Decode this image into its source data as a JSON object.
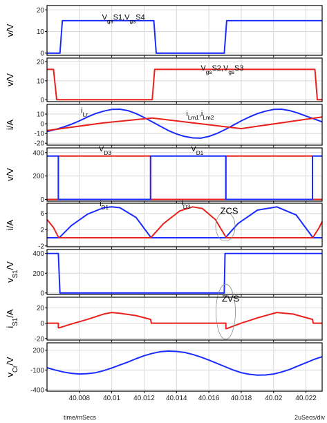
{
  "colors": {
    "blue": "#1a2bff",
    "red": "#e8211d",
    "grid": "#d8d8d8",
    "frame": "#000000"
  },
  "footer": {
    "left": "time/mSecs",
    "right": "2uSecs/div"
  },
  "chart_data": [
    {
      "type": "line",
      "id": "p1",
      "ylabel": [
        "v/V"
      ],
      "yticks": [
        0,
        10,
        20
      ],
      "ylim": [
        -1,
        22
      ],
      "annotations": [
        {
          "parts": [
            [
              "V",
              ""
            ],
            [
              "gs",
              "sub"
            ],
            [
              "S1,V",
              ""
            ],
            [
              "gs",
              "sub"
            ],
            [
              "S4",
              ""
            ]
          ],
          "at": [
            40.0094,
            15.5
          ]
        }
      ],
      "series": [
        {
          "color": "blue",
          "x": [
            40.006,
            40.0068,
            40.00695,
            40.0126,
            40.01275,
            40.01695,
            40.0171,
            40.0228,
            40.023
          ],
          "y": [
            0,
            0,
            15,
            15,
            0,
            0,
            15,
            15,
            15
          ]
        }
      ]
    },
    {
      "type": "line",
      "id": "p2",
      "ylabel": [
        "v/V"
      ],
      "yticks": [
        0,
        10,
        20
      ],
      "ylim": [
        -1,
        22
      ],
      "annotations": [
        {
          "parts": [
            [
              "V",
              ""
            ],
            [
              "gs",
              "sub"
            ],
            [
              "S2,V",
              ""
            ],
            [
              "gs",
              "sub"
            ],
            [
              "S3",
              ""
            ]
          ],
          "at": [
            40.0155,
            15.5
          ]
        }
      ],
      "series": [
        {
          "color": "red",
          "x": [
            40.006,
            40.0064,
            40.0066,
            40.0125,
            40.01265,
            40.02255,
            40.0227,
            40.023
          ],
          "y": [
            16,
            16,
            0,
            0,
            16,
            16,
            0,
            0
          ]
        }
      ]
    },
    {
      "type": "line",
      "id": "p3",
      "ylabel": [
        "i/A"
      ],
      "yticks": [
        -20,
        -10,
        0,
        10
      ],
      "ylim": [
        -22,
        20
      ],
      "annotations": [
        {
          "parts": [
            [
              "i",
              ""
            ],
            [
              "Lr",
              "sub"
            ]
          ],
          "at": [
            40.0081,
            11
          ]
        },
        {
          "parts": [
            [
              "i",
              ""
            ],
            [
              "Lm1",
              "sub"
            ],
            [
              ",i",
              ""
            ],
            [
              "Lm2",
              "sub"
            ]
          ],
          "at": [
            40.0146,
            8
          ]
        }
      ],
      "series": [
        {
          "color": "blue",
          "x": [
            40.006,
            40.0065,
            40.007,
            40.0075,
            40.008,
            40.0085,
            40.009,
            40.0095,
            40.01,
            40.0105,
            40.011,
            40.0115,
            40.012,
            40.0125,
            40.013,
            40.0135,
            40.014,
            40.0145,
            40.015,
            40.0155,
            40.016,
            40.0165,
            40.017,
            40.0175,
            40.018,
            40.0185,
            40.019,
            40.0195,
            40.02,
            40.0205,
            40.021,
            40.0215,
            40.022,
            40.0225,
            40.023
          ],
          "y": [
            -8,
            -6,
            -3.5,
            -0.5,
            3,
            7,
            10.5,
            13,
            14.8,
            15,
            13.5,
            10.5,
            6.5,
            2,
            -2.5,
            -7,
            -10.5,
            -13,
            -14.5,
            -14.8,
            -13,
            -10,
            -6,
            -1.5,
            3,
            7,
            10.5,
            13,
            14.8,
            15,
            13.5,
            11,
            8,
            5,
            2
          ]
        },
        {
          "color": "red",
          "x": [
            40.006,
            40.0095,
            40.0125,
            40.0155,
            40.018,
            40.0215,
            40.023
          ],
          "y": [
            -7,
            1,
            6,
            0,
            -5,
            3.5,
            7
          ]
        }
      ]
    },
    {
      "type": "line",
      "id": "p4",
      "ylabel": [
        "v/V"
      ],
      "yticks": [
        0,
        200,
        400
      ],
      "ylim": [
        -15,
        440
      ],
      "annotations": [
        {
          "parts": [
            [
              "V",
              ""
            ],
            [
              "D3",
              "sub"
            ]
          ],
          "at": [
            40.0092,
            410
          ]
        },
        {
          "parts": [
            [
              "V",
              ""
            ],
            [
              "D1",
              "sub"
            ]
          ],
          "at": [
            40.0149,
            410
          ]
        }
      ],
      "series": [
        {
          "color": "red",
          "x": [
            40.006,
            40.0067,
            40.0067,
            40.0124,
            40.0124,
            40.01705,
            40.01705,
            40.0224,
            40.0224,
            40.023
          ],
          "y": [
            0,
            0,
            370,
            370,
            0,
            0,
            370,
            370,
            0,
            0
          ]
        },
        {
          "color": "blue",
          "x": [
            40.006,
            40.0067,
            40.0067,
            40.0124,
            40.0124,
            40.01705,
            40.01705,
            40.0224,
            40.0224,
            40.023
          ],
          "y": [
            370,
            370,
            0,
            0,
            370,
            370,
            0,
            0,
            370,
            370
          ]
        }
      ]
    },
    {
      "type": "line",
      "id": "p5",
      "ylabel": [
        "i/A"
      ],
      "yticks": [
        -2,
        2,
        6
      ],
      "ylim": [
        -2.2,
        8.5
      ],
      "annotations": [
        {
          "parts": [
            [
              "i",
              ""
            ],
            [
              "D1",
              "sub"
            ]
          ],
          "at": [
            40.00925,
            7.8
          ]
        },
        {
          "parts": [
            [
              "i",
              ""
            ],
            [
              "D3",
              "sub"
            ]
          ],
          "at": [
            40.0143,
            8.0
          ]
        }
      ],
      "zone": {
        "label": "ZCS",
        "center": [
          40.01702,
          2.8
        ],
        "rx_data": 0.0006,
        "ry_data": 3.6,
        "label_at": [
          40.0167,
          5.9
        ]
      },
      "series": [
        {
          "color": "blue",
          "x": [
            40.006,
            40.0067,
            40.0068,
            40.0075,
            40.0085,
            40.0095,
            40.01,
            40.0105,
            40.0115,
            40.0124,
            40.01245,
            40.01705,
            40.01706,
            40.0178,
            40.019,
            40.0202,
            40.0214,
            40.0224,
            40.02242,
            40.023
          ],
          "y": [
            0,
            0,
            0.2,
            3,
            5.8,
            7.4,
            7.6,
            7.4,
            5,
            0.2,
            0,
            0,
            0.2,
            3.5,
            6.8,
            7.6,
            5.6,
            0.2,
            0,
            0
          ]
        },
        {
          "color": "red",
          "x": [
            40.006,
            40.0064,
            40.0067,
            40.00675,
            40.0124,
            40.01245,
            40.0132,
            40.0142,
            40.015,
            40.0156,
            40.0164,
            40.01705,
            40.01706,
            40.0224,
            40.02245,
            40.0228,
            40.023
          ],
          "y": [
            4.5,
            2.5,
            0.2,
            0,
            0,
            0.2,
            3.5,
            6.6,
            7.6,
            7.2,
            4.5,
            0.2,
            0,
            0,
            0.2,
            2.4,
            4
          ]
        }
      ]
    },
    {
      "type": "line",
      "id": "p6",
      "ylabel": [
        "v",
        "S1",
        "/V"
      ],
      "yticks": [
        0,
        200,
        400
      ],
      "ylim": [
        -15,
        440
      ],
      "series": [
        {
          "color": "blue",
          "x": [
            40.006,
            40.0067,
            40.0068,
            40.01695,
            40.017,
            40.023
          ],
          "y": [
            400,
            400,
            0,
            0,
            400,
            400
          ]
        }
      ]
    },
    {
      "type": "line",
      "id": "p7",
      "ylabel": [
        "i",
        "S1",
        "/A"
      ],
      "yticks": [
        -20,
        0,
        20
      ],
      "ylim": [
        -22,
        34
      ],
      "zone": {
        "label": "ZVS",
        "center": [
          40.01704,
          15
        ],
        "rx_data": 0.0006,
        "ry_data": 36,
        "label_at": [
          40.0168,
          28
        ]
      },
      "series": [
        {
          "color": "red",
          "x": [
            40.006,
            40.0067,
            40.0067,
            40.00675,
            40.0075,
            40.0085,
            40.0095,
            40.01,
            40.0105,
            40.0115,
            40.0124,
            40.01245,
            40.01705,
            40.01705,
            40.0171,
            40.018,
            40.019,
            40.0202,
            40.0212,
            40.0224,
            40.02245,
            40.023
          ],
          "y": [
            0,
            0,
            -6,
            -6,
            -1,
            5,
            12,
            14,
            13,
            10,
            5,
            0,
            0,
            -7,
            -7,
            0,
            7,
            14,
            12,
            5,
            0,
            0
          ]
        }
      ]
    },
    {
      "type": "line",
      "id": "p8",
      "ylabel": [
        "v",
        "Cr",
        "/V"
      ],
      "yticks": [
        -400,
        -100,
        200
      ],
      "ylim": [
        -420,
        310
      ],
      "xticks": [
        40.008,
        40.01,
        40.012,
        40.014,
        40.016,
        40.018,
        40.02,
        40.022
      ],
      "xlim": [
        40.006,
        40.023
      ],
      "series": [
        {
          "color": "blue",
          "x": [
            40.006,
            40.0065,
            40.007,
            40.0075,
            40.008,
            40.0085,
            40.009,
            40.0095,
            40.01,
            40.0105,
            40.011,
            40.0115,
            40.012,
            40.0125,
            40.013,
            40.0135,
            40.014,
            40.0145,
            40.015,
            40.0155,
            40.016,
            40.0165,
            40.017,
            40.0175,
            40.018,
            40.0185,
            40.019,
            40.0195,
            40.02,
            40.0205,
            40.021,
            40.0215,
            40.022,
            40.0225,
            40.023
          ],
          "y": [
            -65,
            -100,
            -130,
            -150,
            -160,
            -155,
            -140,
            -110,
            -70,
            -25,
            20,
            70,
            115,
            150,
            175,
            185,
            180,
            165,
            135,
            95,
            50,
            0,
            -50,
            -100,
            -140,
            -165,
            -178,
            -175,
            -160,
            -130,
            -90,
            -40,
            10,
            60,
            100
          ]
        }
      ]
    }
  ]
}
